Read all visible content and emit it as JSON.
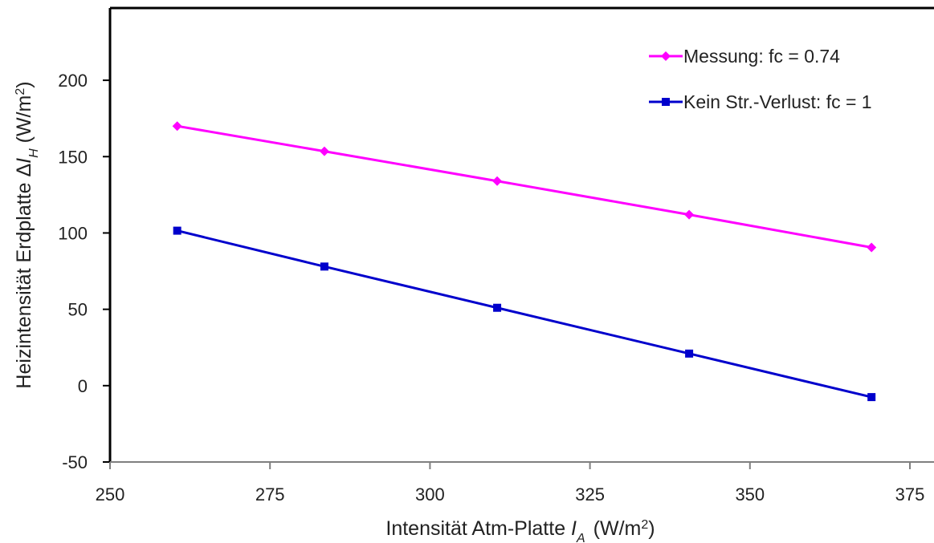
{
  "chart_data": {
    "type": "line",
    "title": "",
    "xlabel": {
      "prefix": "Intensität Atm-Platte ",
      "symbol": "I",
      "subscript": "A",
      "unit": "(W/m",
      "unit_sup": "2",
      "unit_close": ")"
    },
    "ylabel": {
      "prefix": "Heizintensität Erdplatte ",
      "delta": "Δ",
      "symbol": "I",
      "subscript": "H",
      "unit": " (W/m",
      "unit_sup": "2",
      "unit_close": ")"
    },
    "xlim": [
      250,
      375
    ],
    "ylim": [
      -50,
      200
    ],
    "xticks": [
      250,
      275,
      300,
      325,
      350,
      375
    ],
    "yticks": [
      -50,
      0,
      50,
      100,
      150,
      200
    ],
    "grid": false,
    "legend_position": "top-right",
    "series": [
      {
        "name": "Messung: fc = 0.74",
        "color": "#ff00ff",
        "marker": "diamond",
        "x": [
          260.5,
          283.5,
          310.5,
          340.5,
          369.0
        ],
        "y": [
          170,
          153.5,
          134,
          112,
          90.5
        ]
      },
      {
        "name": "Kein Str.-Verlust: fc = 1",
        "color": "#0000cc",
        "marker": "square",
        "x": [
          260.5,
          283.5,
          310.5,
          340.5,
          369.0
        ],
        "y": [
          101.5,
          78,
          51,
          21,
          -7.5
        ]
      }
    ]
  }
}
